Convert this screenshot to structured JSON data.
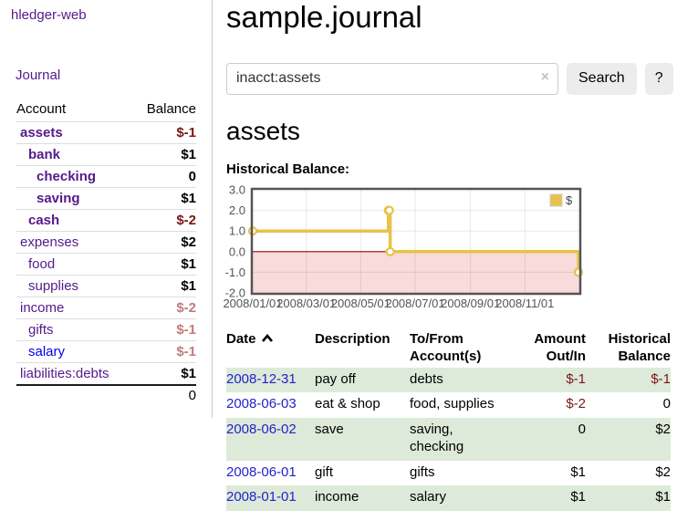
{
  "sidebar": {
    "app_title": "hledger-web",
    "journal_link": "Journal",
    "accounts": {
      "header_account": "Account",
      "header_balance": "Balance",
      "rows": [
        {
          "name": "assets",
          "indent": 0,
          "balance": "$-1",
          "bold": true,
          "neg": "strong"
        },
        {
          "name": "bank",
          "indent": 1,
          "balance": "$1",
          "bold": true,
          "neg": null
        },
        {
          "name": "checking",
          "indent": 2,
          "balance": "0",
          "bold": true,
          "neg": null
        },
        {
          "name": "saving",
          "indent": 2,
          "balance": "$1",
          "bold": true,
          "neg": null
        },
        {
          "name": "cash",
          "indent": 1,
          "balance": "$-2",
          "bold": true,
          "neg": "strong"
        },
        {
          "name": "expenses",
          "indent": 0,
          "balance": "$2",
          "bold": false,
          "neg": null
        },
        {
          "name": "food",
          "indent": 1,
          "balance": "$1",
          "bold": false,
          "neg": null
        },
        {
          "name": "supplies",
          "indent": 1,
          "balance": "$1",
          "bold": false,
          "neg": null
        },
        {
          "name": "income",
          "indent": 0,
          "balance": "$-2",
          "bold": false,
          "neg": "soft"
        },
        {
          "name": "gifts",
          "indent": 1,
          "balance": "$-1",
          "bold": false,
          "neg": "soft"
        },
        {
          "name": "salary",
          "indent": 1,
          "balance": "$-1",
          "bold": false,
          "neg": "soft",
          "blue": true
        },
        {
          "name": "liabilities:debts",
          "indent": 0,
          "balance": "$1",
          "bold": false,
          "neg": null
        }
      ],
      "total": "0"
    }
  },
  "header": {
    "title": "sample.journal"
  },
  "search": {
    "query": "inacct:assets",
    "clear_icon": "×",
    "search_label": "Search",
    "help_label": "?"
  },
  "account_page": {
    "heading": "assets",
    "chart_label": "Historical Balance:"
  },
  "chart_data": {
    "type": "line",
    "step": true,
    "title": "Historical Balance:",
    "series": [
      {
        "name": "$",
        "color": "#e8c24a",
        "points": [
          {
            "date": "2008-01-01",
            "day": 0,
            "value": 1
          },
          {
            "date": "2008-06-01",
            "day": 152,
            "value": 2
          },
          {
            "date": "2008-06-02",
            "day": 153,
            "value": 2
          },
          {
            "date": "2008-06-03",
            "day": 154,
            "value": 0
          },
          {
            "date": "2008-12-31",
            "day": 365,
            "value": -1
          }
        ]
      }
    ],
    "x_ticks": [
      {
        "label": "2008/01/01",
        "day": 0
      },
      {
        "label": "2008/03/01",
        "day": 60
      },
      {
        "label": "2008/05/01",
        "day": 121
      },
      {
        "label": "2008/07/01",
        "day": 182
      },
      {
        "label": "2008/09/01",
        "day": 244
      },
      {
        "label": "2008/11/01",
        "day": 305
      }
    ],
    "y_ticks": [
      "3.0",
      "2.0",
      "1.0",
      "0.0",
      "-1.0",
      "-2.0"
    ],
    "ylim": [
      -2,
      3
    ],
    "xlim_days": [
      0,
      366
    ],
    "grid": true,
    "negative_region_color": "#f9dbdb",
    "zero_line_color": "#a00000",
    "border_color": "#545454",
    "tick_text_color": "#545454",
    "legend": {
      "label": "$",
      "position": "top-right"
    }
  },
  "register": {
    "headers": {
      "date": "Date",
      "description": "Description",
      "accounts": "To/From\nAccount(s)",
      "amount": "Amount\nOut/In",
      "balance": "Historical\nBalance"
    },
    "rows": [
      {
        "date": "2008-12-31",
        "description": "pay off",
        "accounts": "debts",
        "amount": "$-1",
        "amount_negative": true,
        "balance": "$-1",
        "balance_negative": true
      },
      {
        "date": "2008-06-03",
        "description": "eat & shop",
        "accounts": "food, supplies",
        "amount": "$-2",
        "amount_negative": true,
        "balance": "0",
        "balance_negative": false
      },
      {
        "date": "2008-06-02",
        "description": "save",
        "accounts": "saving,\nchecking",
        "amount": "0",
        "amount_negative": false,
        "balance": "$2",
        "balance_negative": false
      },
      {
        "date": "2008-06-01",
        "description": "gift",
        "accounts": "gifts",
        "amount": "$1",
        "amount_negative": false,
        "balance": "$2",
        "balance_negative": false
      },
      {
        "date": "2008-01-01",
        "description": "income",
        "accounts": "salary",
        "amount": "$1",
        "amount_negative": false,
        "balance": "$1",
        "balance_negative": false
      }
    ]
  }
}
